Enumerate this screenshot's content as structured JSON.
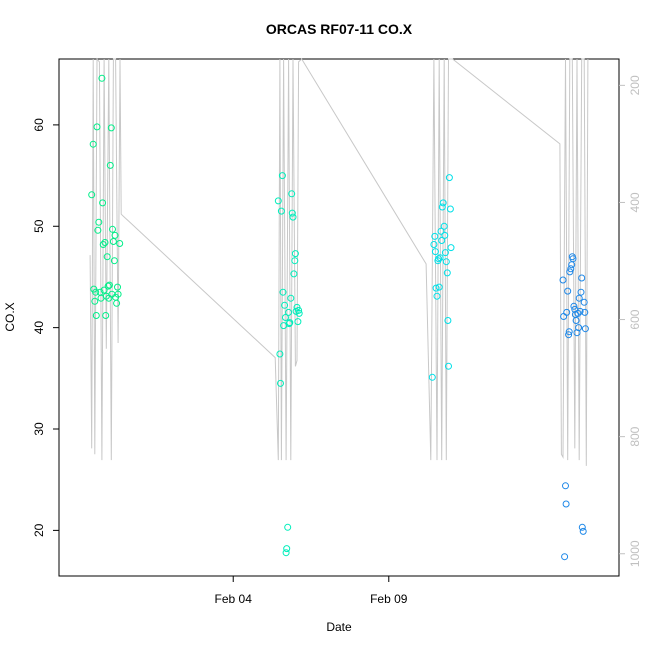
{
  "chart_data": {
    "type": "scatter",
    "title": "ORCAS RF07-11 CO.X",
    "xlabel": "Date",
    "ylabel": "CO.X",
    "x_ticks": [
      "Feb 04",
      "Feb 09"
    ],
    "ylim": [
      15.5,
      66.5
    ],
    "yticks": [
      20,
      30,
      40,
      50,
      60
    ],
    "right_axis": {
      "ylim_reversed": [
        1038,
        155
      ],
      "ticks": [
        200,
        400,
        600,
        800,
        1000
      ],
      "color": "#c0c0c0"
    },
    "legend": "none",
    "grid": false,
    "series": [
      {
        "marker": "open-circle",
        "color": "#00ee88",
        "x": [
          0.45,
          0.5,
          0.52,
          0.55,
          0.58,
          0.6,
          0.62,
          0.65,
          0.68,
          0.72,
          0.75,
          0.78,
          0.8,
          0.82,
          0.85,
          0.88,
          0.9,
          0.92,
          0.95,
          0.98,
          1.0,
          1.02,
          1.05,
          1.08,
          1.1,
          1.12,
          1.15,
          1.18,
          1.2,
          1.22,
          1.25,
          1.28,
          1.3,
          1.35
        ],
        "y": [
          53.1,
          58.1,
          43.8,
          42.6,
          43.5,
          41.2,
          59.8,
          49.6,
          50.4,
          43.5,
          42.9,
          64.6,
          52.3,
          48.2,
          43.7,
          48.4,
          41.2,
          43.1,
          47.0,
          44.1,
          42.9,
          44.2,
          56.0,
          59.7,
          43.3,
          49.7,
          48.5,
          46.6,
          49.1,
          43.0,
          42.4,
          44.0,
          43.3,
          48.3
        ],
        "stroke": "#00ee88"
      },
      {
        "marker": "open-circle",
        "color": "#00eebb",
        "x": [
          6.45,
          6.5,
          6.52,
          6.55,
          6.58,
          6.6,
          6.62,
          6.65,
          6.68,
          6.7,
          6.72,
          6.75,
          6.78,
          6.8,
          6.82,
          6.85,
          6.88,
          6.9,
          6.92,
          6.95,
          6.98,
          7.0,
          7.02,
          7.05,
          7.08,
          7.1,
          7.12
        ],
        "y": [
          52.5,
          37.4,
          34.5,
          51.5,
          55.0,
          43.5,
          40.2,
          42.2,
          41.0,
          17.8,
          18.2,
          20.3,
          41.5,
          40.4,
          40.5,
          42.9,
          53.2,
          51.3,
          50.9,
          45.3,
          46.6,
          47.3,
          41.6,
          42.0,
          40.6,
          41.7,
          41.4
        ]
      },
      {
        "marker": "open-circle",
        "color": "#00e0e8",
        "x": [
          11.4,
          11.45,
          11.48,
          11.5,
          11.52,
          11.55,
          11.58,
          11.6,
          11.62,
          11.65,
          11.68,
          11.7,
          11.72,
          11.75,
          11.78,
          11.8,
          11.82,
          11.85,
          11.88,
          11.9,
          11.92,
          11.95,
          11.98,
          12.0
        ],
        "y": [
          35.1,
          48.2,
          49.0,
          47.5,
          43.9,
          43.1,
          46.6,
          46.8,
          44.0,
          46.9,
          49.5,
          48.6,
          51.9,
          52.3,
          50.0,
          49.1,
          47.4,
          46.5,
          45.4,
          40.7,
          36.2,
          54.8,
          51.7,
          47.9
        ]
      },
      {
        "marker": "open-circle",
        "color": "#1e88e8",
        "x": [
          15.6,
          15.62,
          15.65,
          15.68,
          15.7,
          15.72,
          15.75,
          15.78,
          15.8,
          15.82,
          15.85,
          15.88,
          15.9,
          15.92,
          15.95,
          15.98,
          16.0,
          16.02,
          16.05,
          16.08,
          16.1,
          16.12,
          16.15,
          16.18,
          16.2,
          16.22,
          16.25,
          16.28,
          16.3,
          16.32
        ],
        "y": [
          44.7,
          41.1,
          17.4,
          24.4,
          22.6,
          41.5,
          43.6,
          39.3,
          39.6,
          45.5,
          45.8,
          46.2,
          47.0,
          46.8,
          42.1,
          41.8,
          41.3,
          40.7,
          39.5,
          41.4,
          40.0,
          42.9,
          41.6,
          43.5,
          44.9,
          20.3,
          19.9,
          42.5,
          41.5,
          39.9
        ]
      }
    ],
    "background_line": {
      "color": "#c8c8c8",
      "axis": "right",
      "x": [
        0.4,
        0.45,
        0.5,
        0.55,
        0.62,
        0.7,
        0.78,
        0.85,
        0.92,
        1.0,
        1.08,
        1.15,
        1.22,
        1.3,
        1.36,
        1.4,
        1.5,
        6.35,
        6.45,
        6.5,
        6.55,
        6.62,
        6.7,
        6.78,
        6.85,
        6.92,
        7.0,
        7.05,
        7.1,
        7.2,
        11.2,
        11.35,
        11.45,
        11.55,
        11.62,
        11.7,
        11.78,
        11.85,
        11.92,
        12.0,
        12.05,
        15.5,
        15.55,
        15.6,
        15.68,
        15.75,
        15.82,
        15.9,
        15.98,
        16.05,
        16.12,
        16.2,
        16.28,
        16.35,
        16.4
      ],
      "y": [
        490,
        820,
        155,
        830,
        155,
        160,
        840,
        155,
        650,
        155,
        840,
        155,
        155,
        640,
        155,
        420,
        425,
        665,
        840,
        155,
        840,
        155,
        840,
        155,
        840,
        155,
        680,
        670,
        160,
        155,
        505,
        840,
        155,
        840,
        155,
        840,
        155,
        840,
        155,
        155,
        155,
        300,
        830,
        835,
        155,
        840,
        155,
        155,
        820,
        155,
        840,
        155,
        155,
        850,
        155
      ]
    }
  }
}
